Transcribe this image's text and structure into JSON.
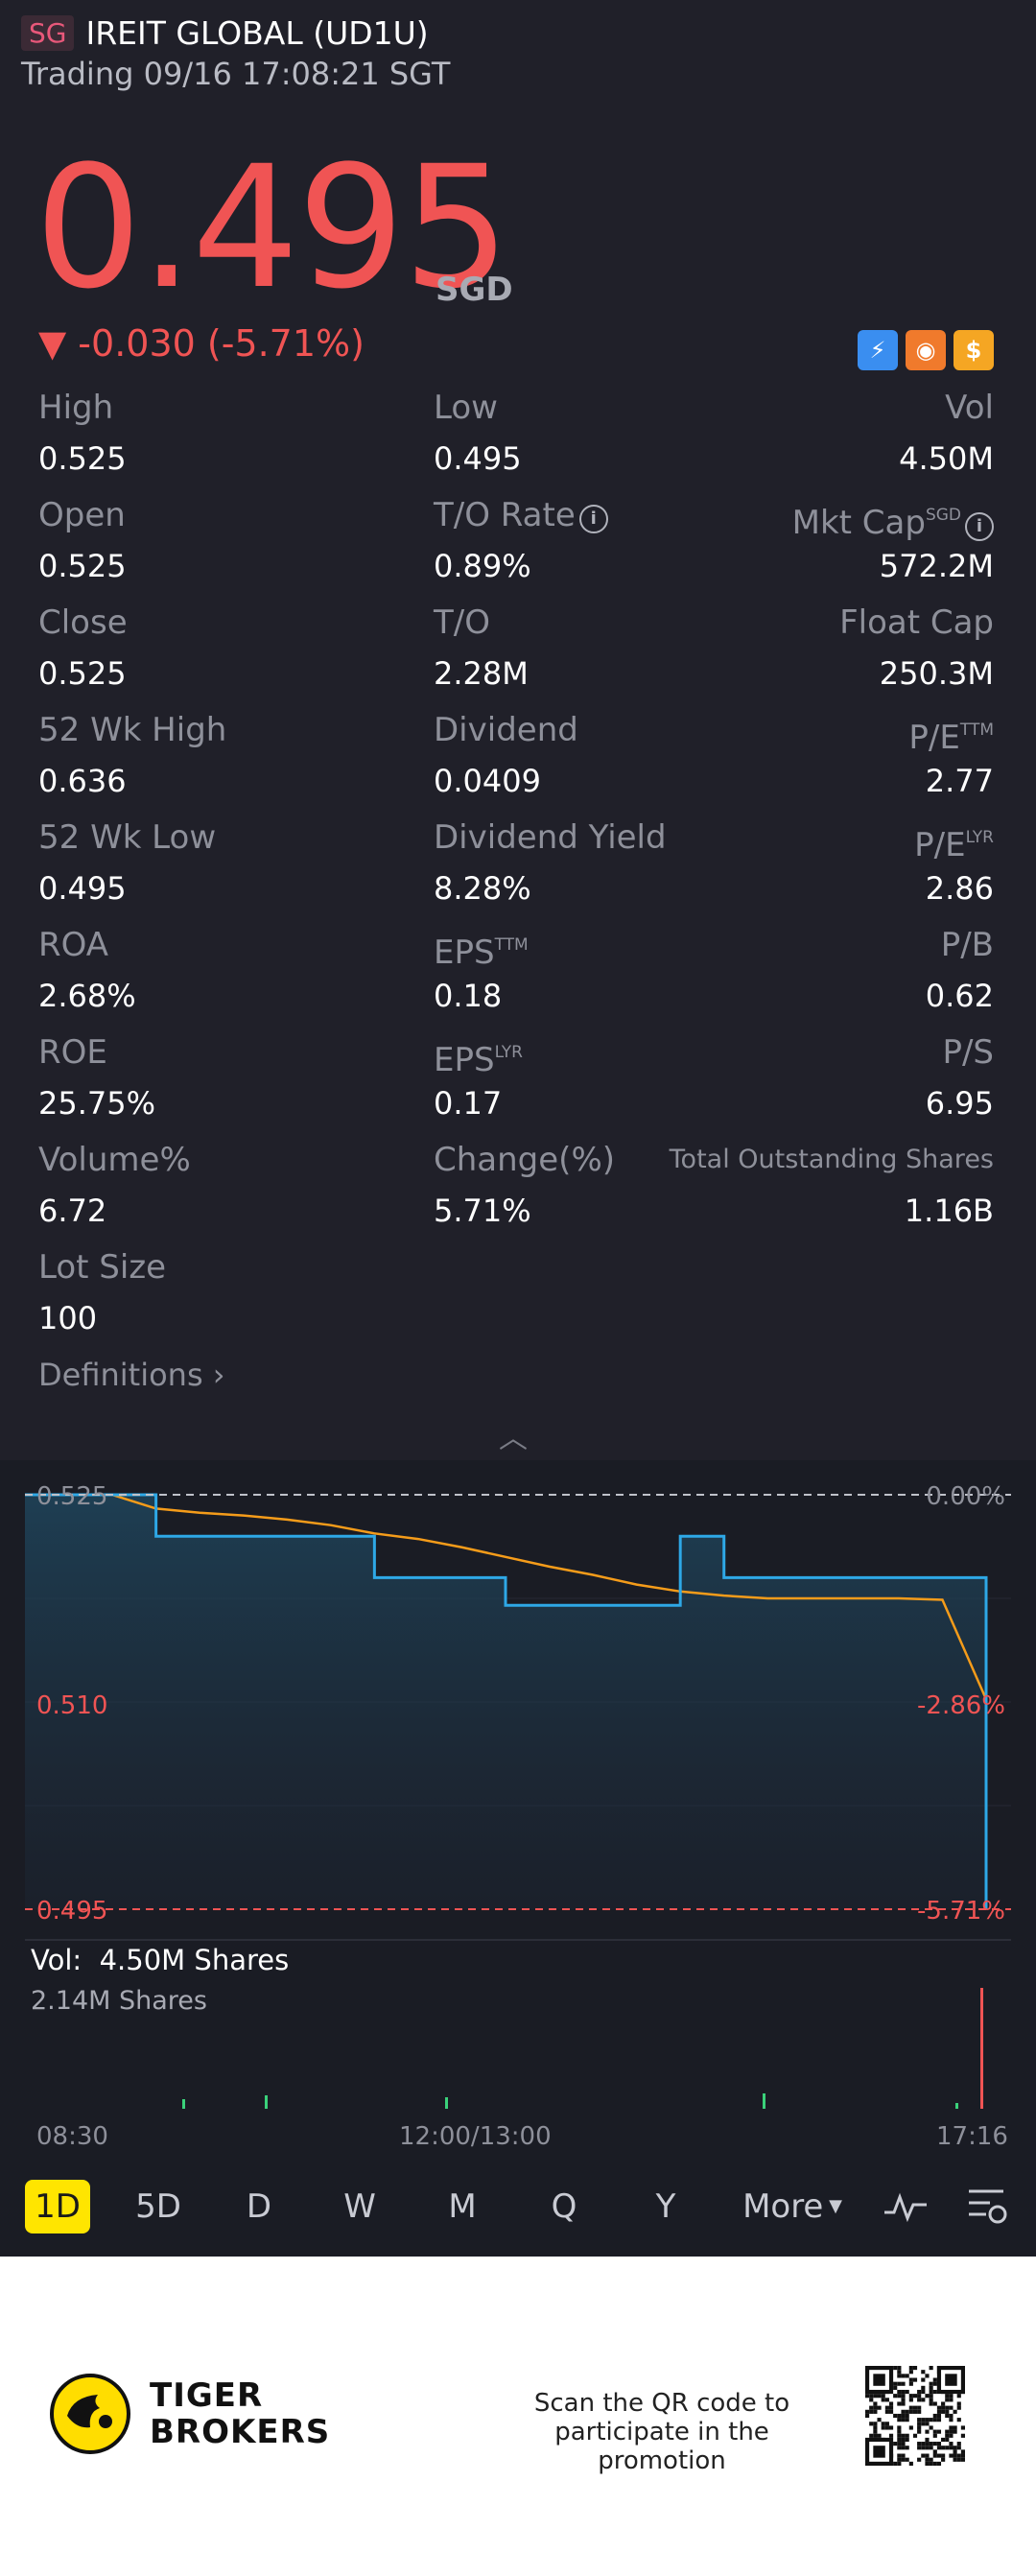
{
  "header": {
    "market_badge": "SG",
    "title": "IREIT GLOBAL (UD1U)",
    "status": "Trading 09/16 17:08:21 SGT"
  },
  "quote": {
    "price": "0.495",
    "currency": "SGD",
    "change": "▼ -0.030 (-5.71%)",
    "color_down": "#f05454"
  },
  "stats": {
    "rows": [
      [
        {
          "label": "High",
          "value": "0.525"
        },
        {
          "label": "Low",
          "value": "0.495"
        },
        {
          "label": "Vol",
          "value": "4.50M"
        }
      ],
      [
        {
          "label": "Open",
          "value": "0.525"
        },
        {
          "label": "T/O Rate",
          "value": "0.89%"
        },
        {
          "label": "Mkt Cap",
          "sup": "SGD",
          "value": "572.2M"
        }
      ],
      [
        {
          "label": "Close",
          "value": "0.525"
        },
        {
          "label": "T/O",
          "value": "2.28M"
        },
        {
          "label": "Float Cap",
          "value": "250.3M"
        }
      ],
      [
        {
          "label": "52 Wk High",
          "value": "0.636"
        },
        {
          "label": "Dividend",
          "value": "0.0409"
        },
        {
          "label": "P/E",
          "sup": "TTM",
          "value": "2.77"
        }
      ],
      [
        {
          "label": "52 Wk Low",
          "value": "0.495"
        },
        {
          "label": "Dividend Yield",
          "value": "8.28%"
        },
        {
          "label": "P/E",
          "sup": "LYR",
          "value": "2.86"
        }
      ],
      [
        {
          "label": "ROA",
          "value": "2.68%"
        },
        {
          "label": "EPS",
          "sup": "TTM",
          "value": "0.18"
        },
        {
          "label": "P/B",
          "value": "0.62"
        }
      ],
      [
        {
          "label": "ROE",
          "value": "25.75%"
        },
        {
          "label": "EPS",
          "sup": "LYR",
          "value": "0.17"
        },
        {
          "label": "P/S",
          "value": "6.95"
        }
      ],
      [
        {
          "label": "Volume%",
          "value": "6.72"
        },
        {
          "label": "Change(%)",
          "value": "5.71%"
        },
        {
          "label": "Total Outstanding Shares",
          "value": "1.16B"
        }
      ],
      [
        {
          "label": "Lot Size",
          "value": "100"
        }
      ]
    ],
    "definitions_link": "Definitions"
  },
  "chart_labels": {
    "top_price": "0.525",
    "mid_price": "0.510",
    "bottom_price": "0.495",
    "top_pct": "0.00%",
    "mid_pct": "-2.86%",
    "bottom_pct": "-5.71%",
    "vol_label": "Vol:",
    "vol_value": "4.50M Shares",
    "vol_max": "2.14M Shares",
    "time_start": "08:30",
    "time_mid": "12:00/13:00",
    "time_end": "17:16"
  },
  "chart_data": {
    "type": "line",
    "ylim": [
      0.495,
      0.525
    ],
    "series": [
      {
        "color": "#2ea8e6",
        "values": [
          0.525,
          0.525,
          0.525,
          0.522,
          0.522,
          0.522,
          0.522,
          0.522,
          0.519,
          0.519,
          0.519,
          0.517,
          0.517,
          0.517,
          0.517,
          0.522,
          0.519,
          0.519,
          0.519,
          0.519,
          0.519,
          0.519,
          0.495
        ]
      },
      {
        "color": "#f59c1a",
        "values": [
          0.525,
          0.525,
          0.525,
          0.524,
          0.5237,
          0.5235,
          0.5232,
          0.5228,
          0.5222,
          0.5218,
          0.5212,
          0.5205,
          0.5198,
          0.5192,
          0.5185,
          0.518,
          0.5177,
          0.5175,
          0.5175,
          0.5175,
          0.5175,
          0.5174,
          0.5102
        ]
      }
    ]
  },
  "tabs": [
    "1D",
    "5D",
    "D",
    "W",
    "M",
    "Q",
    "Y",
    "More"
  ],
  "footer": {
    "brand_line1": "TIGER",
    "brand_line2": "BROKERS",
    "promo": "Scan the QR code to participate in the promotion"
  }
}
